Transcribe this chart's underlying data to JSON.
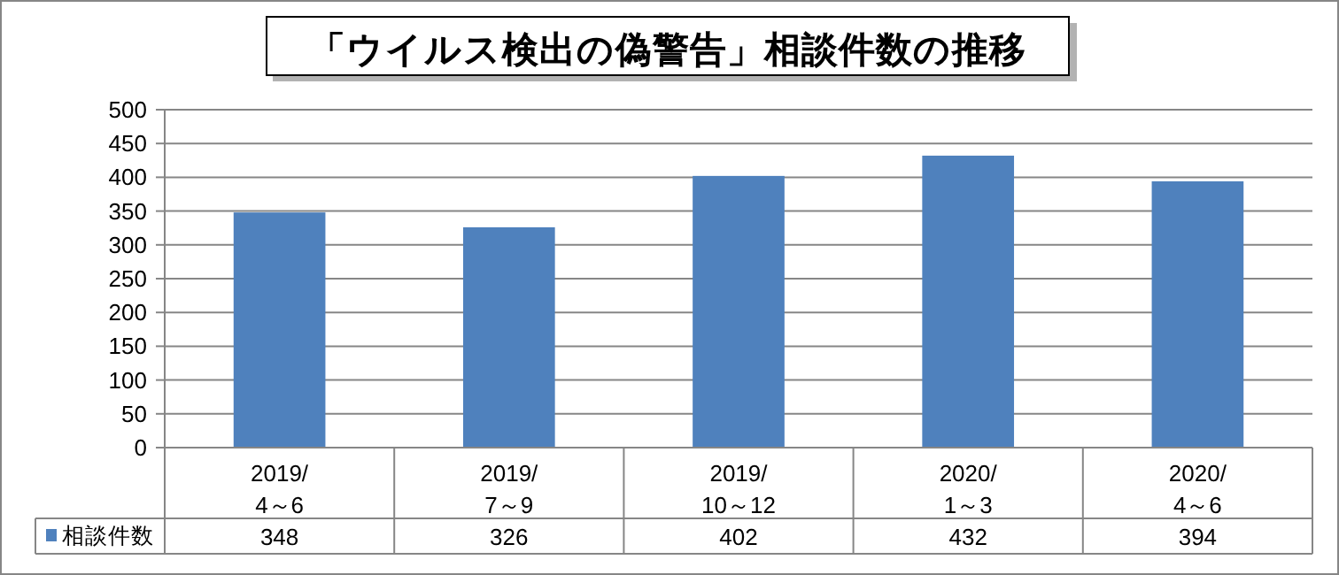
{
  "chart_data": {
    "type": "bar",
    "title": "「ウイルス検出の偽警告」相談件数の推移",
    "categories": [
      "2019/\n4～6",
      "2019/\n7～9",
      "2019/\n10～12",
      "2020/\n1～3",
      "2020/\n4～6"
    ],
    "series": [
      {
        "name": "相談件数",
        "color": "#4f81bd",
        "values": [
          348,
          326,
          402,
          432,
          394
        ]
      }
    ],
    "ylim": [
      0,
      500
    ],
    "yticks": [
      0,
      50,
      100,
      150,
      200,
      250,
      300,
      350,
      400,
      450,
      500
    ],
    "grid": "y",
    "legend": "bottom left",
    "data_labels": true
  }
}
